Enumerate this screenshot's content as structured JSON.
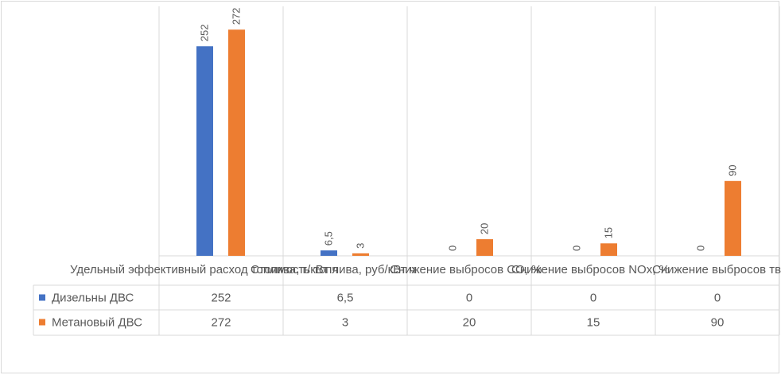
{
  "chart_data": {
    "type": "bar",
    "categories": [
      "Удельный эффективный расход топлива, г/кВт ч",
      "Стоимость топлива, руб/кВт ч",
      "Снижение выбросов CO, %",
      "Снижение выбросов NOx, %",
      "Снижение выбросов твердых"
    ],
    "series": [
      {
        "name": "Дизельны ДВС",
        "values": [
          252,
          6.5,
          0,
          0,
          0
        ],
        "labels": [
          "252",
          "6,5",
          "0",
          "0",
          "0"
        ],
        "color": "#4472C4"
      },
      {
        "name": "Метановый ДВС",
        "values": [
          272,
          3,
          20,
          15,
          90
        ],
        "labels": [
          "272",
          "3",
          "20",
          "15",
          "90"
        ],
        "color": "#ED7D31"
      }
    ],
    "ylim": [
      0,
      300
    ],
    "grid": true,
    "legend": "data-table",
    "xlabel": "",
    "ylabel": "",
    "title": ""
  }
}
